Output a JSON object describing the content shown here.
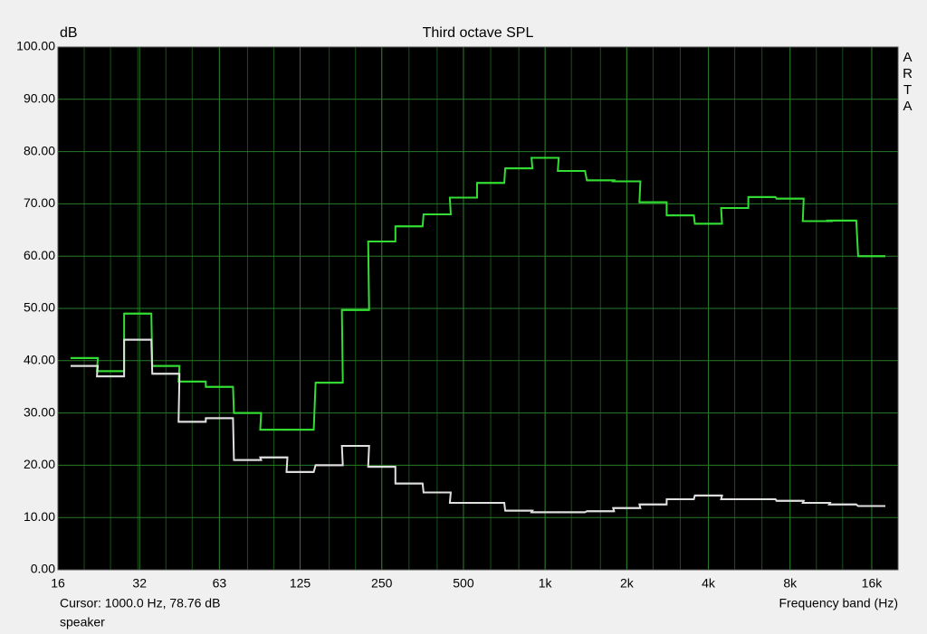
{
  "chart_data": {
    "type": "step",
    "title": "Third octave SPL",
    "y_label": "dB",
    "x_label": "Frequency band (Hz)",
    "watermark": "ARTA",
    "annotations": [
      "Cursor:  1000.0 Hz, 78.76 dB",
      "speaker"
    ],
    "x": [
      20,
      25,
      31.5,
      40,
      50,
      63,
      80,
      100,
      125,
      160,
      200,
      250,
      315,
      400,
      500,
      630,
      800,
      1000,
      1250,
      1600,
      2000,
      2500,
      3150,
      4000,
      5000,
      6300,
      8000,
      10000,
      12500,
      16000
    ],
    "series": [
      {
        "color": "#33dd33",
        "values": [
          40.5,
          38,
          49,
          39,
          36,
          35,
          30,
          26.8,
          26.8,
          35.8,
          49.7,
          62.8,
          65.7,
          68,
          71.2,
          74,
          76.8,
          78.8,
          76.3,
          74.5,
          74.3,
          70.3,
          67.8,
          66.2,
          69.2,
          71.3,
          71,
          66.7,
          66.8,
          60
        ]
      },
      {
        "color": "#e0e0e0",
        "values": [
          39,
          37,
          44,
          37.5,
          28.3,
          29,
          21,
          21.5,
          18.7,
          20,
          23.7,
          19.7,
          16.5,
          14.8,
          12.8,
          12.8,
          11.3,
          11,
          11,
          11.2,
          11.8,
          12.5,
          13.5,
          14.2,
          13.5,
          13.5,
          13.2,
          12.8,
          12.5,
          12.2
        ]
      }
    ],
    "xscale": "log",
    "xlim": [
      16,
      20000
    ],
    "xticks": [
      16,
      32,
      63,
      125,
      250,
      500,
      {
        "value": 1000,
        "label": "1k"
      },
      {
        "value": 2000,
        "label": "2k"
      },
      {
        "value": 4000,
        "label": "4k"
      },
      {
        "value": 8000,
        "label": "8k"
      },
      {
        "value": 16000,
        "label": "16k"
      }
    ],
    "ylim": [
      0,
      100
    ],
    "yticks": [
      {
        "value": 0,
        "label": "0.00"
      },
      {
        "value": 10,
        "label": "10.00"
      },
      {
        "value": 20,
        "label": "20.00"
      },
      {
        "value": 30,
        "label": "30.00"
      },
      {
        "value": 40,
        "label": "40.00"
      },
      {
        "value": 50,
        "label": "50.00"
      },
      {
        "value": 60,
        "label": "60.00"
      },
      {
        "value": 70,
        "label": "70.00"
      },
      {
        "value": 80,
        "label": "80.00"
      },
      {
        "value": 90,
        "label": "90.00"
      },
      {
        "value": 100,
        "label": "100.00"
      }
    ],
    "grid": true,
    "background": "#000000"
  }
}
